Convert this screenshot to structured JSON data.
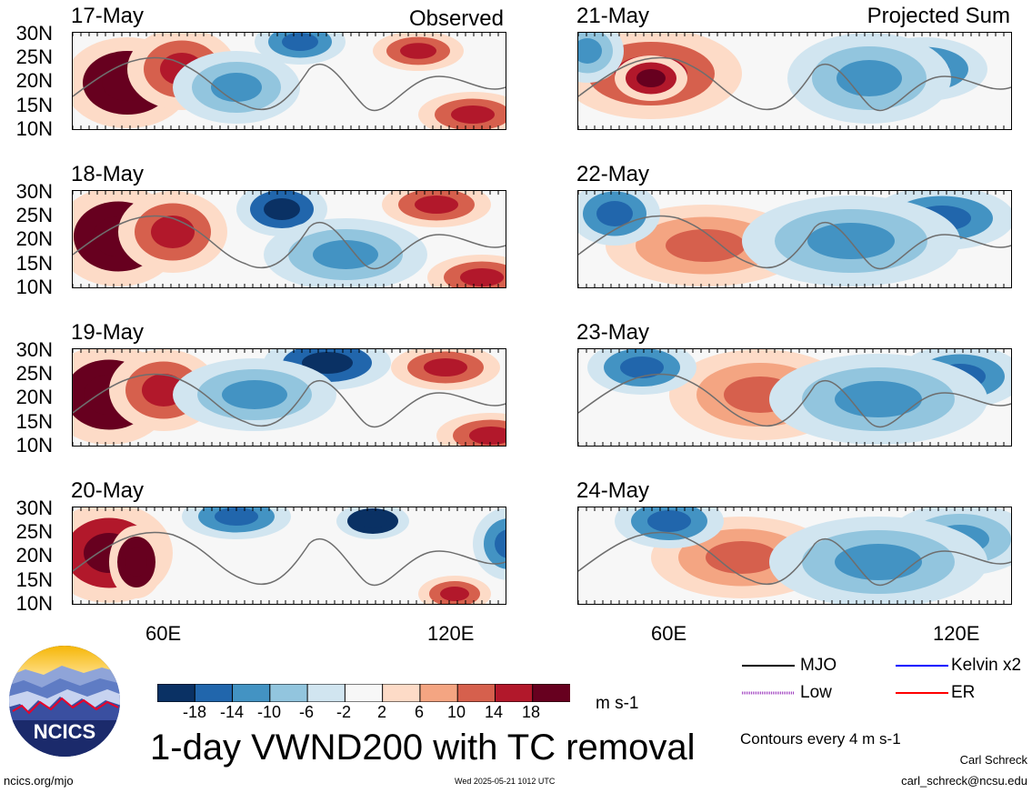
{
  "header": {
    "left_tag": "Observed",
    "right_tag": "Projected Sum"
  },
  "panels_left": [
    {
      "date": "17-May"
    },
    {
      "date": "18-May"
    },
    {
      "date": "19-May"
    },
    {
      "date": "20-May"
    }
  ],
  "panels_right": [
    {
      "date": "21-May"
    },
    {
      "date": "22-May"
    },
    {
      "date": "23-May"
    },
    {
      "date": "24-May"
    }
  ],
  "lat_labels": [
    "30N",
    "25N",
    "20N",
    "15N",
    "10N"
  ],
  "lon_labels": [
    "60E",
    "120E"
  ],
  "colorbar": {
    "colors": [
      "#0a3164",
      "#2166ac",
      "#4393c3",
      "#92c5de",
      "#d1e5f0",
      "#f7f7f7",
      "#fddbc7",
      "#f4a582",
      "#d6604d",
      "#b2182b",
      "#67001f"
    ],
    "labels": [
      "-18",
      "-14",
      "-10",
      "-6",
      "-2",
      "2",
      "6",
      "10",
      "14",
      "18"
    ],
    "units": "m s-1"
  },
  "title": "1-day VWND200 with TC removal",
  "logo_text": "NCICS",
  "legend": [
    {
      "label": "MJO",
      "color": "#000000"
    },
    {
      "label": "Kelvin x2",
      "color": "#0000ff"
    },
    {
      "label": "Low",
      "color": "#a040c0"
    },
    {
      "label": "ER",
      "color": "#ff0000"
    }
  ],
  "contour_note": "Contours every 4 m s-1",
  "author": "Carl Schreck",
  "email": "carl_schreck@ncsu.edu",
  "url": "ncics.org/mjo",
  "timestamp": "Wed 2025-05-21 1012 UTC"
}
